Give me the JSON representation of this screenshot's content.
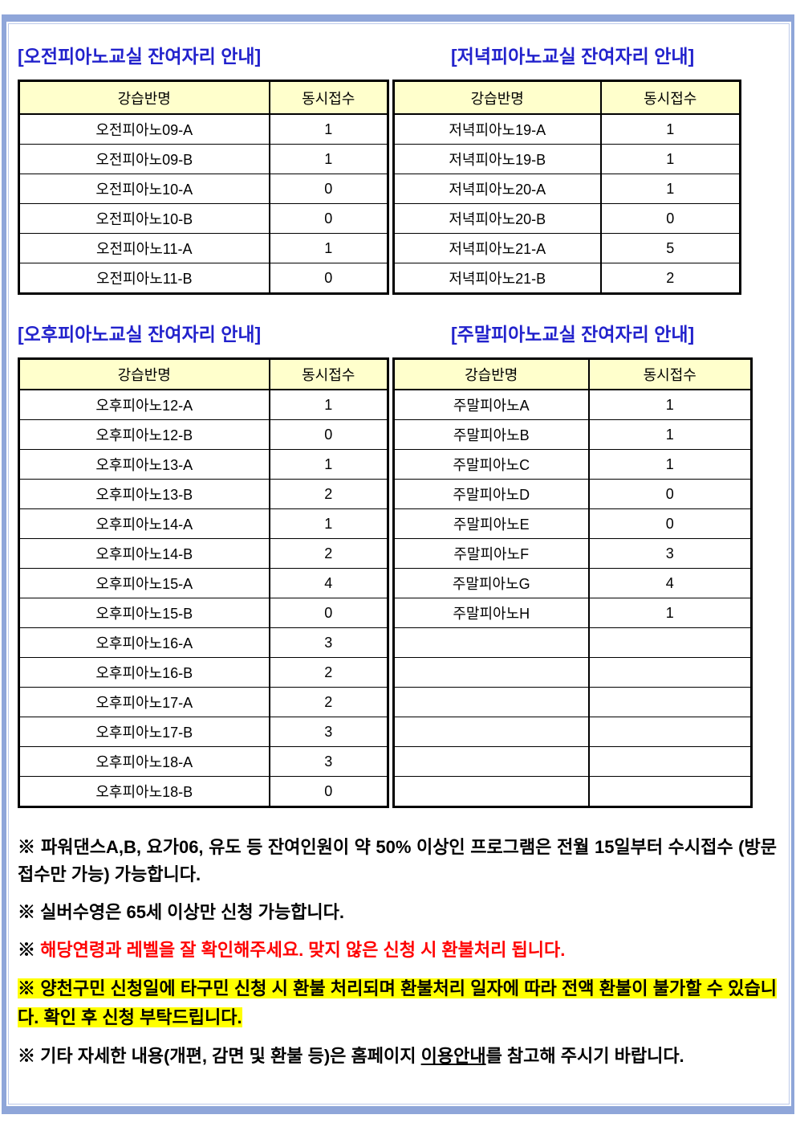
{
  "sections": [
    {
      "title": "[오전피아노교실 잔여자리 안내]",
      "table": {
        "headers": [
          "강습반명",
          "동시접수"
        ],
        "rows": [
          [
            "오전피아노09-A",
            "1"
          ],
          [
            "오전피아노09-B",
            "1"
          ],
          [
            "오전피아노10-A",
            "0"
          ],
          [
            "오전피아노10-B",
            "0"
          ],
          [
            "오전피아노11-A",
            "1"
          ],
          [
            "오전피아노11-B",
            "0"
          ]
        ]
      }
    },
    {
      "title": "[저녁피아노교실 잔여자리 안내]",
      "table": {
        "headers": [
          "강습반명",
          "동시접수"
        ],
        "rows": [
          [
            "저녁피아노19-A",
            "1"
          ],
          [
            "저녁피아노19-B",
            "1"
          ],
          [
            "저녁피아노20-A",
            "1"
          ],
          [
            "저녁피아노20-B",
            "0"
          ],
          [
            "저녁피아노21-A",
            "5"
          ],
          [
            "저녁피아노21-B",
            "2"
          ]
        ]
      }
    },
    {
      "title": "[오후피아노교실 잔여자리 안내]",
      "table": {
        "headers": [
          "강습반명",
          "동시접수"
        ],
        "rows": [
          [
            "오후피아노12-A",
            "1"
          ],
          [
            "오후피아노12-B",
            "0"
          ],
          [
            "오후피아노13-A",
            "1"
          ],
          [
            "오후피아노13-B",
            "2"
          ],
          [
            "오후피아노14-A",
            "1"
          ],
          [
            "오후피아노14-B",
            "2"
          ],
          [
            "오후피아노15-A",
            "4"
          ],
          [
            "오후피아노15-B",
            "0"
          ],
          [
            "오후피아노16-A",
            "3"
          ],
          [
            "오후피아노16-B",
            "2"
          ],
          [
            "오후피아노17-A",
            "2"
          ],
          [
            "오후피아노17-B",
            "3"
          ],
          [
            "오후피아노18-A",
            "3"
          ],
          [
            "오후피아노18-B",
            "0"
          ]
        ]
      }
    },
    {
      "title": "[주말피아노교실 잔여자리 안내]",
      "table": {
        "headers": [
          "강습반명",
          "동시접수"
        ],
        "rows": [
          [
            "주말피아노A",
            "1"
          ],
          [
            "주말피아노B",
            "1"
          ],
          [
            "주말피아노C",
            "1"
          ],
          [
            "주말피아노D",
            "0"
          ],
          [
            "주말피아노E",
            "0"
          ],
          [
            "주말피아노F",
            "3"
          ],
          [
            "주말피아노G",
            "4"
          ],
          [
            "주말피아노H",
            "1"
          ],
          [
            "",
            ""
          ],
          [
            "",
            ""
          ],
          [
            "",
            ""
          ],
          [
            "",
            ""
          ],
          [
            "",
            ""
          ],
          [
            "",
            ""
          ]
        ]
      }
    }
  ],
  "notes": [
    {
      "marker": "※",
      "text": "파워댄스A,B, 요가06, 유도 등 잔여인원이 약 50% 이상인 프로그램은 전월 15일부터 수시접수 (방문접수만 가능) 가능합니다."
    },
    {
      "marker": "※",
      "text": "실버수영은 65세 이상만 신청 가능합니다."
    },
    {
      "marker": "※",
      "text": "해당연령과 레벨을 잘 확인해주세요. 맞지 않은 신청 시 환불처리 됩니다."
    },
    {
      "marker": "※",
      "text": "양천구민 신청일에 타구민 신청 시 환불 처리되며 환불처리 일자에 따라 전액 환불이 불가할 수 있습니다. 확인 후 신청 부탁드립니다."
    },
    {
      "marker": "※",
      "text_before": "기타 자세한 내용(개편, 감면 및 환불 등)은 홈페이지 ",
      "underlined": "이용안내",
      "text_after": "를 참고해 주시기 바랍니다."
    }
  ],
  "colors": {
    "title_blue": "#2222CC",
    "warning_red": "#FF0000",
    "highlight_yellow": "#FFFF00",
    "table_header_bg": "#FFFFCC",
    "frame_blue": "#8FA6D9"
  }
}
